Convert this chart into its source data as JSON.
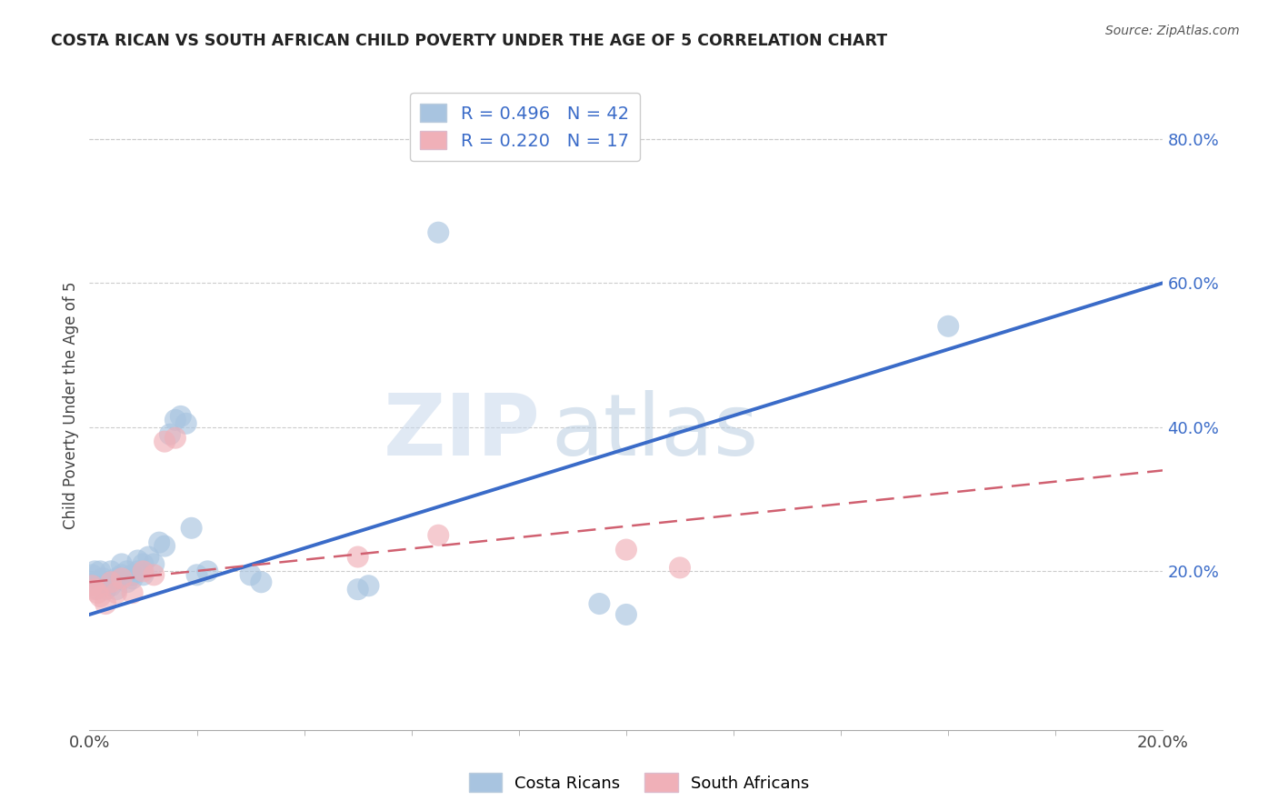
{
  "title": "COSTA RICAN VS SOUTH AFRICAN CHILD POVERTY UNDER THE AGE OF 5 CORRELATION CHART",
  "source": "Source: ZipAtlas.com",
  "ylabel": "Child Poverty Under the Age of 5",
  "xlim": [
    0.0,
    0.2
  ],
  "ylim": [
    -0.02,
    0.88
  ],
  "yticks_right": [
    0.2,
    0.4,
    0.6,
    0.8
  ],
  "ytick_labels_right": [
    "20.0%",
    "40.0%",
    "60.0%",
    "80.0%"
  ],
  "xtick_labels": [
    "0.0%",
    "20.0%"
  ],
  "blue_color": "#a8c4e0",
  "pink_color": "#f0b0b8",
  "blue_line_color": "#3a6bc8",
  "pink_line_color": "#d06070",
  "watermark_zip": "ZIP",
  "watermark_atlas": "atlas",
  "legend_r1": "R = 0.496",
  "legend_n1": "N = 42",
  "legend_r2": "R = 0.220",
  "legend_n2": "N = 17",
  "costa_rican_x": [
    0.0005,
    0.001,
    0.0012,
    0.0015,
    0.002,
    0.002,
    0.0025,
    0.003,
    0.003,
    0.004,
    0.004,
    0.005,
    0.005,
    0.006,
    0.006,
    0.007,
    0.007,
    0.008,
    0.008,
    0.009,
    0.009,
    0.01,
    0.01,
    0.011,
    0.012,
    0.013,
    0.014,
    0.015,
    0.016,
    0.017,
    0.018,
    0.019,
    0.02,
    0.022,
    0.03,
    0.032,
    0.05,
    0.052,
    0.065,
    0.095,
    0.1,
    0.16
  ],
  "costa_rican_y": [
    0.195,
    0.2,
    0.185,
    0.175,
    0.185,
    0.2,
    0.19,
    0.175,
    0.185,
    0.18,
    0.2,
    0.175,
    0.19,
    0.195,
    0.21,
    0.185,
    0.2,
    0.19,
    0.195,
    0.2,
    0.215,
    0.195,
    0.21,
    0.22,
    0.21,
    0.24,
    0.235,
    0.39,
    0.41,
    0.415,
    0.405,
    0.26,
    0.195,
    0.2,
    0.195,
    0.185,
    0.175,
    0.18,
    0.67,
    0.155,
    0.14,
    0.54
  ],
  "south_african_x": [
    0.0005,
    0.001,
    0.0015,
    0.002,
    0.003,
    0.004,
    0.005,
    0.006,
    0.008,
    0.01,
    0.012,
    0.014,
    0.016,
    0.05,
    0.065,
    0.1,
    0.11
  ],
  "south_african_y": [
    0.18,
    0.175,
    0.17,
    0.165,
    0.155,
    0.185,
    0.17,
    0.19,
    0.17,
    0.2,
    0.195,
    0.38,
    0.385,
    0.22,
    0.25,
    0.23,
    0.205
  ],
  "blue_trendline_x": [
    0.0,
    0.2
  ],
  "blue_trendline_y": [
    0.14,
    0.6
  ],
  "pink_trendline_x": [
    0.0,
    0.2
  ],
  "pink_trendline_y": [
    0.185,
    0.34
  ]
}
